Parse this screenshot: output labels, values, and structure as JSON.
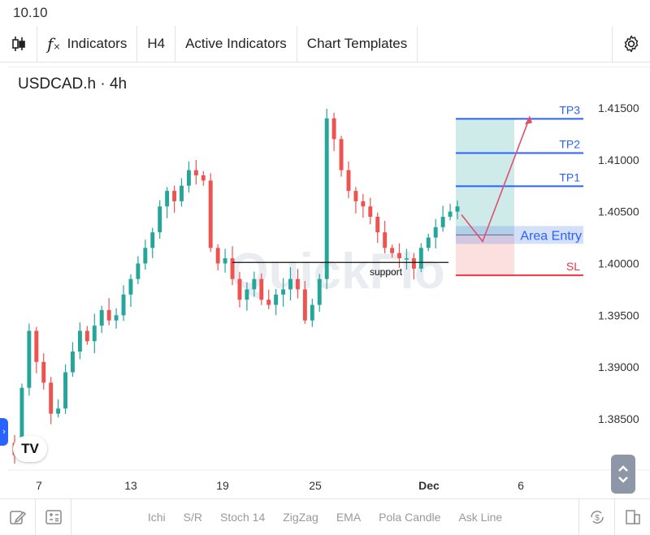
{
  "status": {
    "time": "10.10"
  },
  "toolbar": {
    "indicators_label": "Indicators",
    "interval_label": "H4",
    "active_indicators_label": "Active Indicators",
    "chart_templates_label": "Chart Templates"
  },
  "bottom_bar": {
    "items": [
      "Ichi",
      "S/R",
      "Stoch 14",
      "ZigZag",
      "EMA",
      "Pola Candle",
      "Ask Line"
    ]
  },
  "colors": {
    "up": "#26a69a",
    "down": "#ef5350",
    "tp_line": "#2962ff",
    "sl_line": "#f23645",
    "accent": "#2962ff"
  },
  "chart_data": {
    "type": "candlestick",
    "title": "USDCAD.h · 4h",
    "symbol": "USDCAD.h",
    "interval": "4h",
    "ylim": [
      1.3805,
      1.419
    ],
    "y_ticks": [
      "1.41500",
      "1.41000",
      "1.40500",
      "1.40000",
      "1.39500",
      "1.39000",
      "1.38500"
    ],
    "x_ticks": [
      "7",
      "13",
      "19",
      "25",
      "Dec",
      "6"
    ],
    "watermark": "QuickFlo",
    "close_path": [
      1.3815,
      1.388,
      1.3935,
      1.3905,
      1.3885,
      1.3855,
      1.386,
      1.3895,
      1.3915,
      1.3935,
      1.3925,
      1.394,
      1.3955,
      1.3945,
      1.395,
      1.397,
      1.3985,
      1.4,
      1.4015,
      1.403,
      1.4055,
      1.407,
      1.406,
      1.4075,
      1.409,
      1.4085,
      1.408,
      1.4015,
      1.4,
      1.4005,
      1.3985,
      1.3965,
      1.3975,
      1.3985,
      1.3965,
      1.396,
      1.397,
      1.3975,
      1.3985,
      1.3975,
      1.3945,
      1.396,
      1.3985,
      1.414,
      1.412,
      1.409,
      1.407,
      1.406,
      1.4055,
      1.4045,
      1.403,
      1.4015,
      1.401,
      1.4005,
      1.4005,
      1.3995,
      1.4015,
      1.4025,
      1.4035,
      1.4045,
      1.405,
      1.4055
    ],
    "support": {
      "label": "support",
      "price": 1.4001
    },
    "levels": [
      {
        "label": "TP3",
        "price": 1.41395
      },
      {
        "label": "TP2",
        "price": 1.41065
      },
      {
        "label": "TP1",
        "price": 1.40745
      },
      {
        "label": "Area Entry",
        "price": 1.40275
      },
      {
        "label": "SL",
        "price": 1.39885
      }
    ],
    "y_axis_side": "right",
    "grid": false
  }
}
